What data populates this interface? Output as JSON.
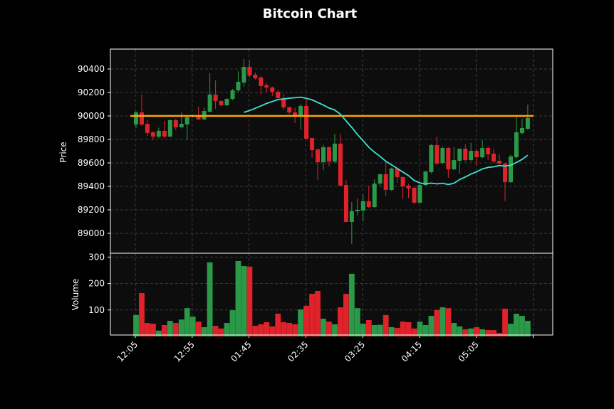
{
  "chart_data": {
    "type": "candlestick",
    "title": "Bitcoin Chart",
    "ylabel": "Price",
    "volume_ylabel": "Volume",
    "start_time": "12:05",
    "interval_minutes": 5,
    "x_ticks": [
      "12:05",
      "12:55",
      "01:45",
      "02:35",
      "03:25",
      "04:15",
      "05:05",
      ""
    ],
    "price_ticks": [
      89000,
      89200,
      89400,
      89600,
      89800,
      90000,
      90200,
      90400
    ],
    "volume_ticks": [
      100,
      200,
      300
    ],
    "price_ylim": [
      88750,
      90560
    ],
    "volume_ylim": [
      0,
      314
    ],
    "hline": {
      "value": 90000,
      "color": "#ffa500"
    },
    "moving_average": {
      "period": 20,
      "color": "#40e0d0"
    },
    "up_color": "#2a9a48",
    "down_color": "#e0232a",
    "grid": true,
    "ohlc": [
      [
        89927,
        90040,
        89897,
        90030
      ],
      [
        90030,
        90182,
        89915,
        89927
      ],
      [
        89933,
        89970,
        89830,
        89855
      ],
      [
        89860,
        89870,
        89794,
        89824
      ],
      [
        89824,
        89900,
        89810,
        89873
      ],
      [
        89873,
        89958,
        89810,
        89824
      ],
      [
        89824,
        89970,
        89820,
        89964
      ],
      [
        89964,
        89975,
        89880,
        89903
      ],
      [
        89903,
        90030,
        89895,
        89933
      ],
      [
        89927,
        89995,
        89794,
        89988
      ],
      [
        89995,
        90010,
        89985,
        90000
      ],
      [
        90000,
        90079,
        89965,
        89970
      ],
      [
        89970,
        90073,
        89965,
        90042
      ],
      [
        90036,
        90364,
        90030,
        90182
      ],
      [
        90182,
        90303,
        90060,
        90127
      ],
      [
        90127,
        90135,
        90080,
        90091
      ],
      [
        90091,
        90150,
        90085,
        90145
      ],
      [
        90145,
        90230,
        90135,
        90218
      ],
      [
        90218,
        90380,
        90200,
        90291
      ],
      [
        90285,
        90485,
        90250,
        90418
      ],
      [
        90418,
        90473,
        90330,
        90345
      ],
      [
        90351,
        90370,
        90310,
        90321
      ],
      [
        90327,
        90340,
        90182,
        90255
      ],
      [
        90261,
        90280,
        90200,
        90242
      ],
      [
        90242,
        90250,
        90170,
        90206
      ],
      [
        90206,
        90220,
        90140,
        90152
      ],
      [
        90152,
        90190,
        90050,
        90073
      ],
      [
        90073,
        90080,
        90015,
        90030
      ],
      [
        90030,
        90070,
        89939,
        90006
      ],
      [
        90006,
        90100,
        89885,
        90085
      ],
      [
        90085,
        90139,
        89806,
        89806
      ],
      [
        89812,
        89812,
        89642,
        89709
      ],
      [
        89715,
        89720,
        89455,
        89606
      ],
      [
        89606,
        89755,
        89539,
        89733
      ],
      [
        89733,
        89740,
        89570,
        89612
      ],
      [
        89612,
        89848,
        89600,
        89764
      ],
      [
        89764,
        89848,
        89406,
        89406
      ],
      [
        89412,
        89455,
        89097,
        89097
      ],
      [
        89097,
        89267,
        88909,
        89188
      ],
      [
        89188,
        89297,
        89152,
        89200
      ],
      [
        89194,
        89330,
        89103,
        89273
      ],
      [
        89273,
        89406,
        89215,
        89224
      ],
      [
        89224,
        89461,
        89215,
        89424
      ],
      [
        89424,
        89510,
        89400,
        89503
      ],
      [
        89503,
        89606,
        89321,
        89370
      ],
      [
        89370,
        89560,
        89360,
        89552
      ],
      [
        89552,
        89560,
        89430,
        89479
      ],
      [
        89479,
        89485,
        89291,
        89400
      ],
      [
        89406,
        89420,
        89303,
        89382
      ],
      [
        89388,
        89395,
        89250,
        89261
      ],
      [
        89261,
        89420,
        89255,
        89412
      ],
      [
        89412,
        89530,
        89405,
        89527
      ],
      [
        89521,
        89760,
        89510,
        89752
      ],
      [
        89752,
        89824,
        89580,
        89594
      ],
      [
        89600,
        89740,
        89590,
        89727
      ],
      [
        89727,
        89735,
        89473,
        89545
      ],
      [
        89545,
        89733,
        89540,
        89624
      ],
      [
        89618,
        89721,
        89509,
        89721
      ],
      [
        89721,
        89758,
        89610,
        89624
      ],
      [
        89624,
        89770,
        89615,
        89703
      ],
      [
        89703,
        89715,
        89576,
        89648
      ],
      [
        89648,
        89794,
        89640,
        89727
      ],
      [
        89727,
        89740,
        89624,
        89673
      ],
      [
        89679,
        89721,
        89600,
        89612
      ],
      [
        89618,
        89673,
        89590,
        89594
      ],
      [
        89594,
        89600,
        89273,
        89436
      ],
      [
        89436,
        89670,
        89430,
        89655
      ],
      [
        89648,
        89988,
        89640,
        89861
      ],
      [
        89855,
        89976,
        89840,
        89897
      ],
      [
        89891,
        90097,
        89880,
        89982
      ]
    ],
    "volume": [
      81,
      164,
      51,
      48,
      22,
      43,
      59,
      51,
      64,
      107,
      75,
      56,
      35,
      280,
      40,
      30,
      51,
      99,
      285,
      266,
      264,
      40,
      46,
      54,
      38,
      86,
      54,
      51,
      46,
      102,
      116,
      161,
      172,
      67,
      56,
      46,
      110,
      161,
      237,
      107,
      48,
      62,
      43,
      44,
      81,
      35,
      32,
      56,
      54,
      30,
      56,
      43,
      78,
      100,
      110,
      107,
      51,
      38,
      27,
      30,
      35,
      27,
      24,
      24,
      13,
      105,
      48,
      86,
      78,
      59
    ]
  }
}
